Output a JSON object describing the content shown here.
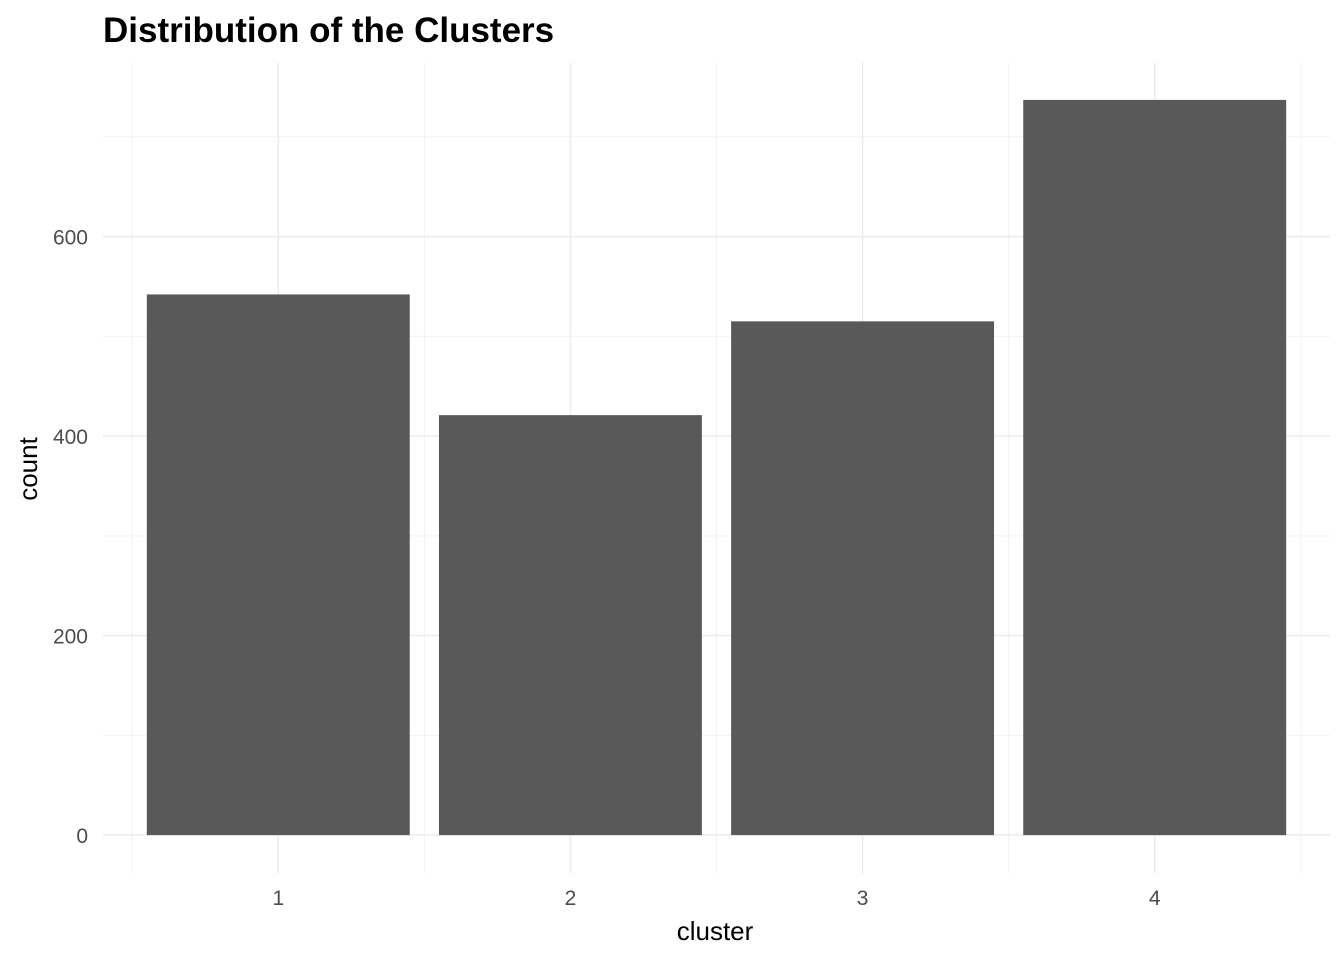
{
  "chart_data": {
    "type": "bar",
    "title": "Distribution of the Clusters",
    "xlabel": "cluster",
    "ylabel": "count",
    "categories": [
      "1",
      "2",
      "3",
      "4"
    ],
    "values": [
      542,
      421,
      515,
      737
    ],
    "ylim": [
      -38,
      774
    ],
    "yticks": [
      0,
      200,
      400,
      600
    ],
    "ytick_labels": [
      "0",
      "200",
      "400",
      "600"
    ],
    "grid": true,
    "bar_color": "#595959"
  }
}
